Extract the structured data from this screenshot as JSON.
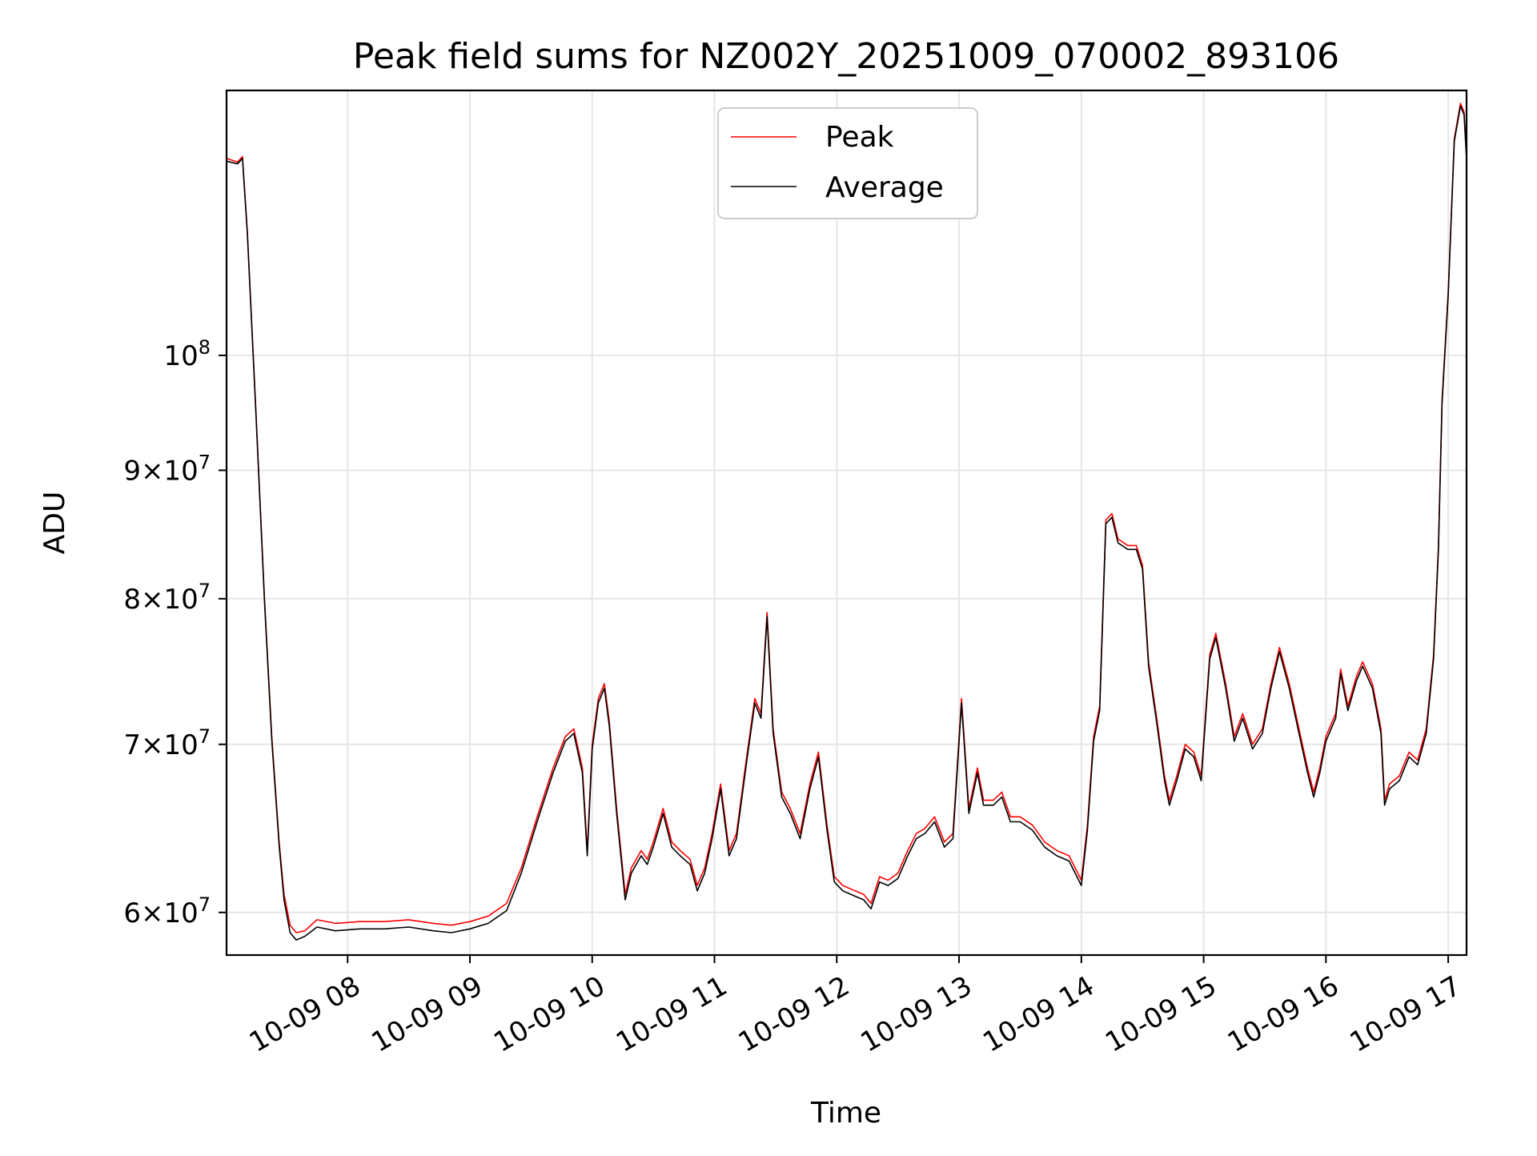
{
  "chart_data": {
    "type": "line",
    "title": "Peak field sums for NZ002Y_20251009_070002_893106",
    "xlabel": "Time",
    "ylabel": "ADU",
    "yscale": "log",
    "grid": true,
    "legend_position": "top-center",
    "x_unit": "hours since 2025-10-09 00:00",
    "xlim": [
      7.01,
      17.15
    ],
    "ylim": [
      57700000,
      127500000
    ],
    "x_ticks": [
      {
        "value": 8,
        "label": "10-09 08"
      },
      {
        "value": 9,
        "label": "10-09 09"
      },
      {
        "value": 10,
        "label": "10-09 10"
      },
      {
        "value": 11,
        "label": "10-09 11"
      },
      {
        "value": 12,
        "label": "10-09 12"
      },
      {
        "value": 13,
        "label": "10-09 13"
      },
      {
        "value": 14,
        "label": "10-09 14"
      },
      {
        "value": 15,
        "label": "10-09 15"
      },
      {
        "value": 16,
        "label": "10-09 16"
      },
      {
        "value": 17,
        "label": "10-09 17"
      }
    ],
    "y_ticks": [
      {
        "value": 60000000,
        "mantissa": "6",
        "exponent": "7"
      },
      {
        "value": 70000000,
        "mantissa": "7",
        "exponent": "7"
      },
      {
        "value": 80000000,
        "mantissa": "8",
        "exponent": "7"
      },
      {
        "value": 90000000,
        "mantissa": "9",
        "exponent": "7"
      },
      {
        "value": 100000000,
        "mantissa": "10",
        "exponent": "8"
      }
    ],
    "times_symbol": "×",
    "series": [
      {
        "name": "Peak",
        "color": "#ff0000",
        "points": [
          [
            7.01,
            119800000
          ],
          [
            7.1,
            119400000
          ],
          [
            7.14,
            120000000
          ],
          [
            7.18,
            112000000
          ],
          [
            7.25,
            95000000
          ],
          [
            7.32,
            80000000
          ],
          [
            7.38,
            70500000
          ],
          [
            7.44,
            64000000
          ],
          [
            7.48,
            61000000
          ],
          [
            7.53,
            59300000
          ],
          [
            7.58,
            58900000
          ],
          [
            7.65,
            59000000
          ],
          [
            7.75,
            59600000
          ],
          [
            7.9,
            59400000
          ],
          [
            8.1,
            59500000
          ],
          [
            8.3,
            59500000
          ],
          [
            8.5,
            59600000
          ],
          [
            8.7,
            59400000
          ],
          [
            8.85,
            59300000
          ],
          [
            9.0,
            59500000
          ],
          [
            9.15,
            59800000
          ],
          [
            9.3,
            60500000
          ],
          [
            9.42,
            62500000
          ],
          [
            9.55,
            65500000
          ],
          [
            9.68,
            68500000
          ],
          [
            9.78,
            70500000
          ],
          [
            9.85,
            71000000
          ],
          [
            9.92,
            68500000
          ],
          [
            9.96,
            63500000
          ],
          [
            10.0,
            70000000
          ],
          [
            10.05,
            73000000
          ],
          [
            10.1,
            74000000
          ],
          [
            10.14,
            71500000
          ],
          [
            10.2,
            66000000
          ],
          [
            10.27,
            61000000
          ],
          [
            10.32,
            62500000
          ],
          [
            10.4,
            63500000
          ],
          [
            10.45,
            63000000
          ],
          [
            10.5,
            64000000
          ],
          [
            10.58,
            66000000
          ],
          [
            10.65,
            64000000
          ],
          [
            10.72,
            63500000
          ],
          [
            10.8,
            63000000
          ],
          [
            10.86,
            61500000
          ],
          [
            10.92,
            62500000
          ],
          [
            10.98,
            64500000
          ],
          [
            11.05,
            67500000
          ],
          [
            11.12,
            63500000
          ],
          [
            11.18,
            64500000
          ],
          [
            11.26,
            69000000
          ],
          [
            11.33,
            73000000
          ],
          [
            11.38,
            72000000
          ],
          [
            11.43,
            79000000
          ],
          [
            11.48,
            71000000
          ],
          [
            11.55,
            67000000
          ],
          [
            11.62,
            66000000
          ],
          [
            11.7,
            64500000
          ],
          [
            11.78,
            67500000
          ],
          [
            11.85,
            69500000
          ],
          [
            11.92,
            65000000
          ],
          [
            11.98,
            62000000
          ],
          [
            12.05,
            61500000
          ],
          [
            12.15,
            61200000
          ],
          [
            12.22,
            61000000
          ],
          [
            12.28,
            60500000
          ],
          [
            12.35,
            62000000
          ],
          [
            12.42,
            61800000
          ],
          [
            12.5,
            62200000
          ],
          [
            12.58,
            63500000
          ],
          [
            12.65,
            64500000
          ],
          [
            12.72,
            64800000
          ],
          [
            12.8,
            65500000
          ],
          [
            12.88,
            64000000
          ],
          [
            12.95,
            64500000
          ],
          [
            13.02,
            73000000
          ],
          [
            13.08,
            66000000
          ],
          [
            13.15,
            68500000
          ],
          [
            13.2,
            66500000
          ],
          [
            13.28,
            66500000
          ],
          [
            13.35,
            67000000
          ],
          [
            13.42,
            65500000
          ],
          [
            13.5,
            65500000
          ],
          [
            13.6,
            65000000
          ],
          [
            13.7,
            64000000
          ],
          [
            13.8,
            63500000
          ],
          [
            13.9,
            63200000
          ],
          [
            14.0,
            61800000
          ],
          [
            14.05,
            65000000
          ],
          [
            14.1,
            70500000
          ],
          [
            14.15,
            72500000
          ],
          [
            14.2,
            86000000
          ],
          [
            14.25,
            86500000
          ],
          [
            14.3,
            84500000
          ],
          [
            14.38,
            84000000
          ],
          [
            14.45,
            84000000
          ],
          [
            14.5,
            82500000
          ],
          [
            14.55,
            75500000
          ],
          [
            14.62,
            71500000
          ],
          [
            14.68,
            68000000
          ],
          [
            14.72,
            66500000
          ],
          [
            14.78,
            68000000
          ],
          [
            14.85,
            70000000
          ],
          [
            14.92,
            69500000
          ],
          [
            14.98,
            68000000
          ],
          [
            15.05,
            76000000
          ],
          [
            15.1,
            77500000
          ],
          [
            15.18,
            74000000
          ],
          [
            15.25,
            70500000
          ],
          [
            15.32,
            72000000
          ],
          [
            15.4,
            70000000
          ],
          [
            15.48,
            71000000
          ],
          [
            15.55,
            74000000
          ],
          [
            15.62,
            76500000
          ],
          [
            15.7,
            74000000
          ],
          [
            15.78,
            71000000
          ],
          [
            15.85,
            68500000
          ],
          [
            15.9,
            67000000
          ],
          [
            15.95,
            68500000
          ],
          [
            16.0,
            70500000
          ],
          [
            16.08,
            72000000
          ],
          [
            16.12,
            75000000
          ],
          [
            16.18,
            72500000
          ],
          [
            16.25,
            74500000
          ],
          [
            16.3,
            75500000
          ],
          [
            16.38,
            74000000
          ],
          [
            16.45,
            71000000
          ],
          [
            16.48,
            66500000
          ],
          [
            16.52,
            67500000
          ],
          [
            16.6,
            68000000
          ],
          [
            16.68,
            69500000
          ],
          [
            16.75,
            69000000
          ],
          [
            16.82,
            71000000
          ],
          [
            16.88,
            76000000
          ],
          [
            16.92,
            84000000
          ],
          [
            16.95,
            96000000
          ],
          [
            17.0,
            106000000
          ],
          [
            17.05,
            122000000
          ],
          [
            17.1,
            126000000
          ],
          [
            17.13,
            125000000
          ],
          [
            17.15,
            120000000
          ]
        ]
      },
      {
        "name": "Average",
        "color": "#000000",
        "points": [
          [
            7.01,
            119500000
          ],
          [
            7.1,
            119200000
          ],
          [
            7.14,
            119800000
          ],
          [
            7.18,
            111800000
          ],
          [
            7.25,
            94800000
          ],
          [
            7.32,
            79800000
          ],
          [
            7.38,
            70300000
          ],
          [
            7.44,
            63800000
          ],
          [
            7.48,
            60700000
          ],
          [
            7.53,
            58900000
          ],
          [
            7.58,
            58500000
          ],
          [
            7.65,
            58700000
          ],
          [
            7.75,
            59200000
          ],
          [
            7.9,
            59000000
          ],
          [
            8.1,
            59100000
          ],
          [
            8.3,
            59100000
          ],
          [
            8.5,
            59200000
          ],
          [
            8.7,
            59000000
          ],
          [
            8.85,
            58900000
          ],
          [
            9.0,
            59100000
          ],
          [
            9.15,
            59400000
          ],
          [
            9.3,
            60100000
          ],
          [
            9.42,
            62200000
          ],
          [
            9.55,
            65200000
          ],
          [
            9.68,
            68200000
          ],
          [
            9.78,
            70200000
          ],
          [
            9.85,
            70700000
          ],
          [
            9.92,
            68200000
          ],
          [
            9.96,
            63200000
          ],
          [
            10.0,
            69700000
          ],
          [
            10.05,
            72700000
          ],
          [
            10.1,
            73700000
          ],
          [
            10.14,
            71200000
          ],
          [
            10.2,
            65700000
          ],
          [
            10.27,
            60700000
          ],
          [
            10.32,
            62200000
          ],
          [
            10.4,
            63200000
          ],
          [
            10.45,
            62700000
          ],
          [
            10.5,
            63700000
          ],
          [
            10.58,
            65700000
          ],
          [
            10.65,
            63700000
          ],
          [
            10.72,
            63200000
          ],
          [
            10.8,
            62700000
          ],
          [
            10.86,
            61200000
          ],
          [
            10.92,
            62200000
          ],
          [
            10.98,
            64200000
          ],
          [
            11.05,
            67200000
          ],
          [
            11.12,
            63200000
          ],
          [
            11.18,
            64200000
          ],
          [
            11.26,
            68700000
          ],
          [
            11.33,
            72700000
          ],
          [
            11.38,
            71700000
          ],
          [
            11.43,
            78700000
          ],
          [
            11.48,
            70700000
          ],
          [
            11.55,
            66700000
          ],
          [
            11.62,
            65700000
          ],
          [
            11.7,
            64200000
          ],
          [
            11.78,
            67200000
          ],
          [
            11.85,
            69200000
          ],
          [
            11.92,
            64700000
          ],
          [
            11.98,
            61700000
          ],
          [
            12.05,
            61200000
          ],
          [
            12.15,
            60900000
          ],
          [
            12.22,
            60700000
          ],
          [
            12.28,
            60200000
          ],
          [
            12.35,
            61700000
          ],
          [
            12.42,
            61500000
          ],
          [
            12.5,
            61900000
          ],
          [
            12.58,
            63200000
          ],
          [
            12.65,
            64200000
          ],
          [
            12.72,
            64500000
          ],
          [
            12.8,
            65200000
          ],
          [
            12.88,
            63700000
          ],
          [
            12.95,
            64200000
          ],
          [
            13.02,
            72700000
          ],
          [
            13.08,
            65700000
          ],
          [
            13.15,
            68200000
          ],
          [
            13.2,
            66200000
          ],
          [
            13.28,
            66200000
          ],
          [
            13.35,
            66700000
          ],
          [
            13.42,
            65200000
          ],
          [
            13.5,
            65200000
          ],
          [
            13.6,
            64700000
          ],
          [
            13.7,
            63700000
          ],
          [
            13.8,
            63200000
          ],
          [
            13.9,
            62900000
          ],
          [
            14.0,
            61500000
          ],
          [
            14.05,
            64700000
          ],
          [
            14.1,
            70200000
          ],
          [
            14.15,
            72200000
          ],
          [
            14.2,
            85700000
          ],
          [
            14.25,
            86200000
          ],
          [
            14.3,
            84200000
          ],
          [
            14.38,
            83700000
          ],
          [
            14.45,
            83700000
          ],
          [
            14.5,
            82200000
          ],
          [
            14.55,
            75200000
          ],
          [
            14.62,
            71200000
          ],
          [
            14.68,
            67700000
          ],
          [
            14.72,
            66200000
          ],
          [
            14.78,
            67700000
          ],
          [
            14.85,
            69700000
          ],
          [
            14.92,
            69200000
          ],
          [
            14.98,
            67700000
          ],
          [
            15.05,
            75700000
          ],
          [
            15.1,
            77200000
          ],
          [
            15.18,
            73700000
          ],
          [
            15.25,
            70200000
          ],
          [
            15.32,
            71700000
          ],
          [
            15.4,
            69700000
          ],
          [
            15.48,
            70700000
          ],
          [
            15.55,
            73700000
          ],
          [
            15.62,
            76200000
          ],
          [
            15.7,
            73700000
          ],
          [
            15.78,
            70700000
          ],
          [
            15.85,
            68200000
          ],
          [
            15.9,
            66700000
          ],
          [
            15.95,
            68200000
          ],
          [
            16.0,
            70200000
          ],
          [
            16.08,
            71700000
          ],
          [
            16.12,
            74700000
          ],
          [
            16.18,
            72200000
          ],
          [
            16.25,
            74200000
          ],
          [
            16.3,
            75200000
          ],
          [
            16.38,
            73700000
          ],
          [
            16.45,
            70700000
          ],
          [
            16.48,
            66200000
          ],
          [
            16.52,
            67200000
          ],
          [
            16.6,
            67700000
          ],
          [
            16.68,
            69200000
          ],
          [
            16.75,
            68700000
          ],
          [
            16.82,
            70700000
          ],
          [
            16.88,
            75700000
          ],
          [
            16.92,
            83700000
          ],
          [
            16.95,
            95700000
          ],
          [
            17.0,
            105700000
          ],
          [
            17.05,
            121700000
          ],
          [
            17.1,
            125700000
          ],
          [
            17.13,
            124700000
          ],
          [
            17.15,
            119700000
          ]
        ]
      }
    ]
  }
}
